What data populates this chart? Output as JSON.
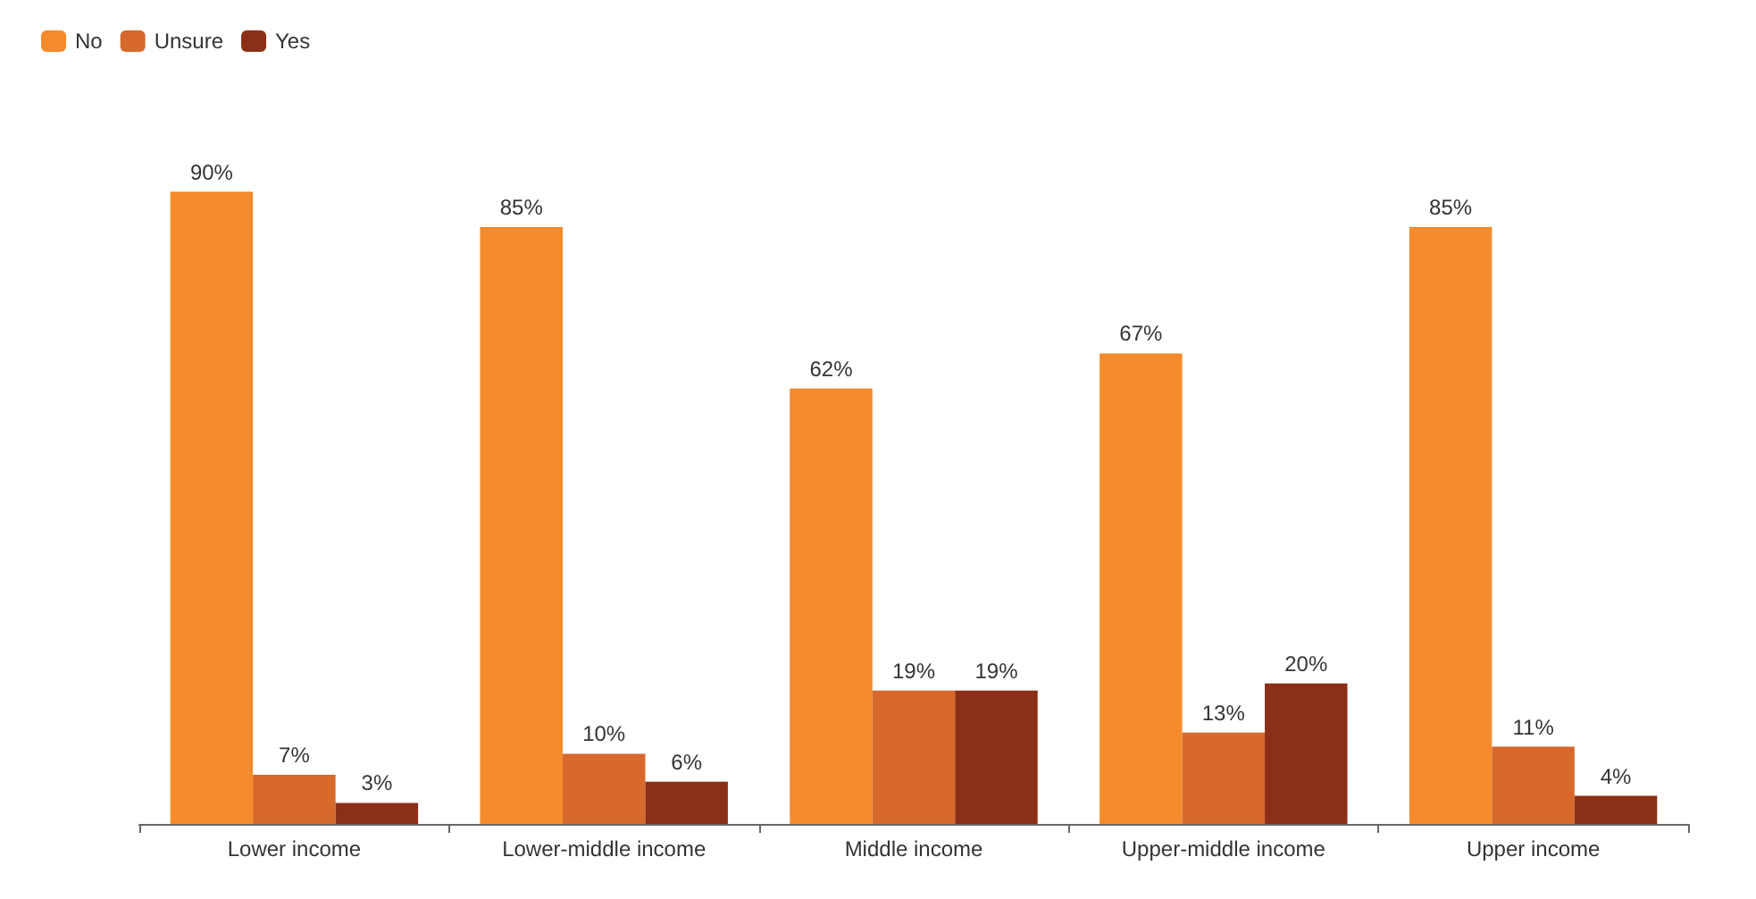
{
  "chart_data": {
    "type": "bar",
    "categories": [
      "Lower income",
      "Lower-middle income",
      "Middle income",
      "Upper-middle income",
      "Upper income"
    ],
    "series": [
      {
        "name": "No",
        "color": "#f58b2c",
        "values": [
          90,
          85,
          62,
          67,
          85
        ],
        "value_labels": [
          "90%",
          "85%",
          "62%",
          "67%",
          "85%"
        ]
      },
      {
        "name": "Unsure",
        "color": "#d6692b",
        "values": [
          7,
          10,
          19,
          13,
          11
        ],
        "value_labels": [
          "7%",
          "10%",
          "19%",
          "13%",
          "11%"
        ]
      },
      {
        "name": "Yes",
        "color": "#8c2f17",
        "values": [
          3,
          6,
          19,
          20,
          4
        ],
        "value_labels": [
          "3%",
          "6%",
          "19%",
          "20%",
          "4%"
        ]
      }
    ],
    "legend": "top left"
  }
}
